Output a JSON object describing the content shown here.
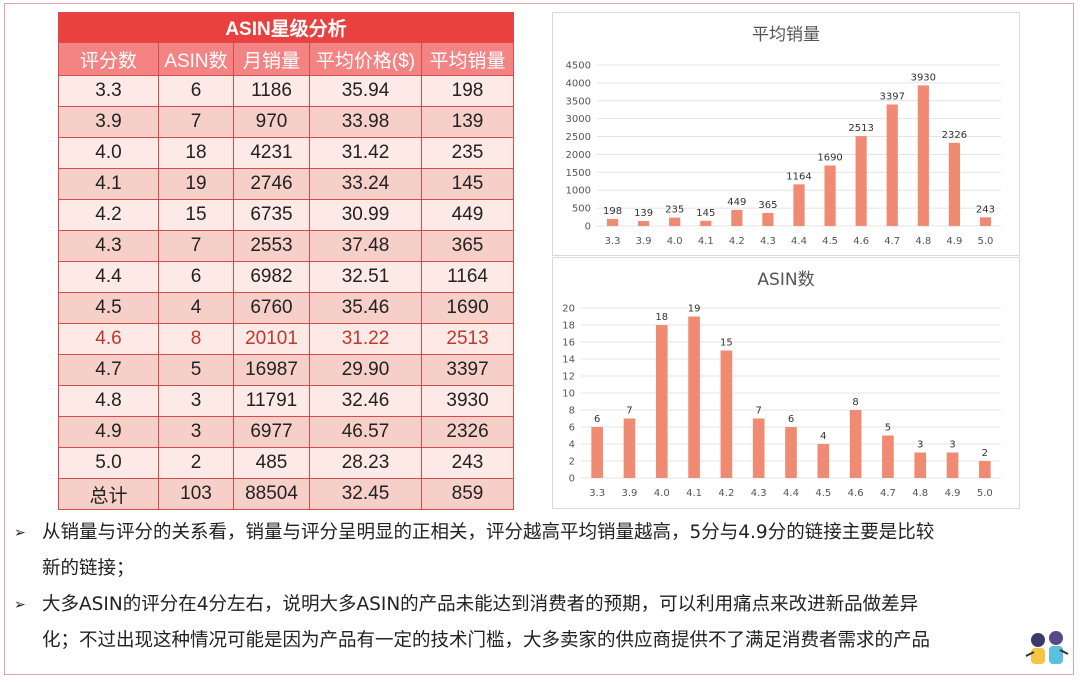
{
  "table": {
    "title": "ASIN星级分析",
    "headers": [
      "评分数",
      "ASIN数",
      "月销量",
      "平均价格($)",
      "平均销量"
    ],
    "rows": [
      [
        "3.3",
        "6",
        "1186",
        "35.94",
        "198"
      ],
      [
        "3.9",
        "7",
        "970",
        "33.98",
        "139"
      ],
      [
        "4.0",
        "18",
        "4231",
        "31.42",
        "235"
      ],
      [
        "4.1",
        "19",
        "2746",
        "33.24",
        "145"
      ],
      [
        "4.2",
        "15",
        "6735",
        "30.99",
        "449"
      ],
      [
        "4.3",
        "7",
        "2553",
        "37.48",
        "365"
      ],
      [
        "4.4",
        "6",
        "6982",
        "32.51",
        "1164"
      ],
      [
        "4.5",
        "4",
        "6760",
        "35.46",
        "1690"
      ],
      [
        "4.6",
        "8",
        "20101",
        "31.22",
        "2513"
      ],
      [
        "4.7",
        "5",
        "16987",
        "29.90",
        "3397"
      ],
      [
        "4.8",
        "3",
        "11791",
        "32.46",
        "3930"
      ],
      [
        "4.9",
        "3",
        "6977",
        "46.57",
        "2326"
      ],
      [
        "5.0",
        "2",
        "485",
        "28.23",
        "243"
      ],
      [
        "总计",
        "103",
        "88504",
        "32.45",
        "859"
      ]
    ]
  },
  "chart_data": [
    {
      "type": "bar",
      "title": "平均销量",
      "categories": [
        "3.3",
        "3.9",
        "4.0",
        "4.1",
        "4.2",
        "4.3",
        "4.4",
        "4.5",
        "4.6",
        "4.7",
        "4.8",
        "4.9",
        "5.0"
      ],
      "values": [
        198,
        139,
        235,
        145,
        449,
        365,
        1164,
        1690,
        2513,
        3397,
        3930,
        2326,
        243
      ],
      "ylim": [
        0,
        4500
      ],
      "yticks": [
        0,
        500,
        1000,
        1500,
        2000,
        2500,
        3000,
        3500,
        4000,
        4500
      ],
      "grid": true
    },
    {
      "type": "bar",
      "title": "ASIN数",
      "categories": [
        "3.3",
        "3.9",
        "4.0",
        "4.1",
        "4.2",
        "4.3",
        "4.4",
        "4.5",
        "4.6",
        "4.7",
        "4.8",
        "4.9",
        "5.0"
      ],
      "values": [
        6,
        7,
        18,
        19,
        15,
        7,
        6,
        4,
        8,
        5,
        3,
        3,
        2
      ],
      "ylim": [
        0,
        20
      ],
      "yticks": [
        0,
        2,
        4,
        6,
        8,
        10,
        12,
        14,
        16,
        18,
        20
      ],
      "grid": true
    }
  ],
  "bullets": [
    {
      "line1": "从销量与评分的关系看，销量与评分呈明显的正相关，评分越高平均销量越高，5分与4.9分的链接主要是比较",
      "line2": "新的链接；"
    },
    {
      "line1": "大多ASIN的评分在4分左右，说明大多ASIN的产品未能达到消费者的预期，可以利用痛点来改进新品做差异",
      "line2": "化；不过出现这种情况可能是因为产品有一定的技术门槛，大多卖家的供应商提供不了满足消费者需求的产品"
    }
  ],
  "colors": {
    "title_bg": "#e8413f",
    "header_bg": "#f48484",
    "row_light": "#fde9e6",
    "row_dark": "#f7cfc9",
    "highlight_text": "#c0392b",
    "bar": "#f08a73"
  }
}
